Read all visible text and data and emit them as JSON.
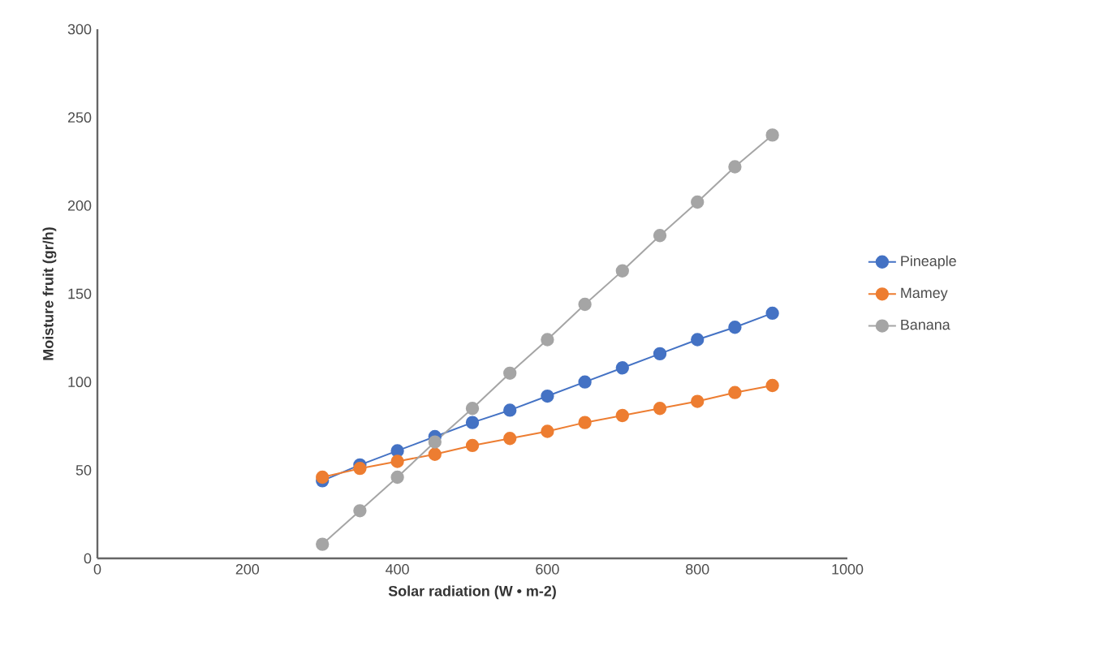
{
  "chart_data": {
    "type": "line",
    "xlabel": "Solar radiation (W • m-2)",
    "ylabel": "Moisture fruit (gr/h)",
    "x": [
      300,
      350,
      400,
      450,
      500,
      550,
      600,
      650,
      700,
      750,
      800,
      850,
      900
    ],
    "series": [
      {
        "name": "Pineaple",
        "color": "#4472c4",
        "values": [
          44,
          53,
          61,
          69,
          77,
          84,
          92,
          100,
          108,
          116,
          124,
          131,
          139
        ]
      },
      {
        "name": "Mamey",
        "color": "#ed7d31",
        "values": [
          46,
          51,
          55,
          59,
          64,
          68,
          72,
          77,
          81,
          85,
          89,
          94,
          98
        ]
      },
      {
        "name": "Banana",
        "color": "#a5a5a5",
        "values": [
          8,
          27,
          46,
          66,
          85,
          105,
          124,
          144,
          163,
          183,
          202,
          222,
          240
        ]
      }
    ],
    "xlim": [
      0,
      1000
    ],
    "ylim": [
      0,
      300
    ],
    "xticks": [
      0,
      200,
      400,
      600,
      800,
      1000
    ],
    "yticks": [
      0,
      50,
      100,
      150,
      200,
      250,
      300
    ],
    "legend": "right",
    "marker": "circle",
    "line_style": "solid",
    "grid": false
  }
}
